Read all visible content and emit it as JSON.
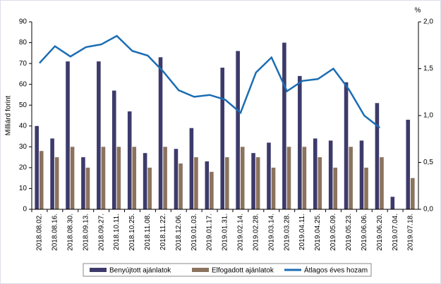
{
  "chart_data": {
    "type": "bar",
    "y_label": "Milliárd forint",
    "y2_label": "%",
    "categories": [
      "2018.08.02.",
      "2018.08.16.",
      "2018.08.30.",
      "2018.09.13.",
      "2018.09.27.",
      "2018.10.11.",
      "2018.10.25.",
      "2018.11.08.",
      "2018.11.22.",
      "2018.12.06.",
      "2019.01.03.",
      "2019.01.17.",
      "2019.01.31.",
      "2019.02.14.",
      "2019.02.28.",
      "2019.03.14.",
      "2019.03.28.",
      "2019.04.11.",
      "2019.04.25.",
      "2019.05.09.",
      "2019.05.23.",
      "2019.06.06.",
      "2019.06.20.",
      "2019.07.04.",
      "2019.07.18."
    ],
    "series": [
      {
        "name": "Benyújtott ajánlatok",
        "type": "bar",
        "color": "#3d3a6b",
        "values": [
          40,
          34,
          71,
          25,
          71,
          57,
          47,
          27,
          73,
          29,
          39,
          23,
          68,
          76,
          27,
          32,
          80,
          64,
          34,
          33,
          61,
          33,
          51,
          6,
          43
        ]
      },
      {
        "name": "Elfogadott ajánlatok",
        "type": "bar",
        "color": "#8b735e",
        "values": [
          28,
          25,
          30,
          20,
          30,
          30,
          30,
          20,
          30,
          22,
          25,
          18,
          25,
          30,
          25,
          20,
          30,
          30,
          25,
          20,
          30,
          20,
          25,
          null,
          15
        ]
      },
      {
        "name": "Átlagos éves hozam",
        "type": "line",
        "axis": "y2",
        "color": "#1b6db3",
        "values": [
          1.56,
          1.74,
          1.63,
          1.73,
          1.76,
          1.85,
          1.69,
          1.64,
          1.47,
          1.27,
          1.2,
          1.22,
          1.17,
          1.03,
          1.46,
          1.62,
          1.26,
          1.37,
          1.39,
          1.5,
          1.28,
          1.0,
          0.87,
          null,
          null
        ]
      }
    ],
    "ylim": [
      0,
      90
    ],
    "yticks": [
      0,
      10,
      20,
      30,
      40,
      50,
      60,
      70,
      80,
      90
    ],
    "y2lim": [
      0,
      2
    ],
    "y2ticks": [
      {
        "value": 0,
        "label": "0,0"
      },
      {
        "value": 0.5,
        "label": "0,5"
      },
      {
        "value": 1,
        "label": "1,0"
      },
      {
        "value": 1.5,
        "label": "1,5"
      },
      {
        "value": 2,
        "label": "2,0"
      }
    ]
  }
}
